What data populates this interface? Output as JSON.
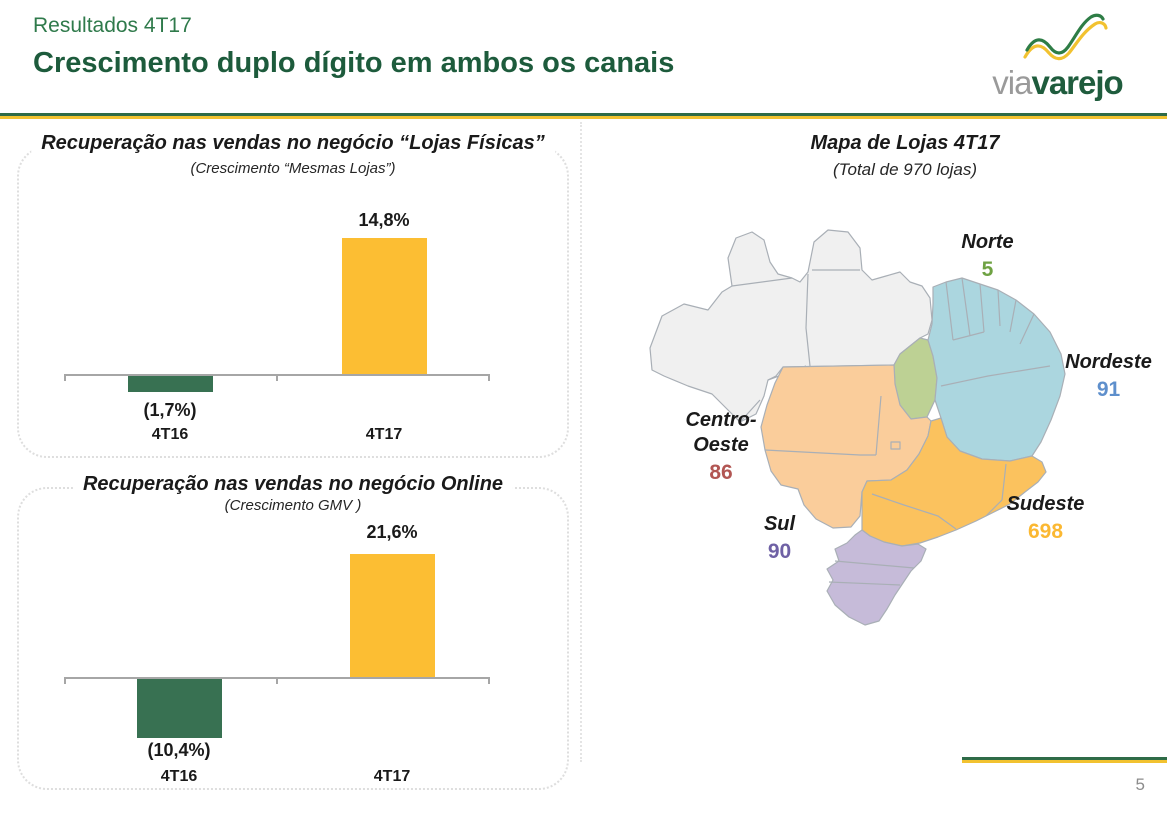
{
  "slide": {
    "kicker": "Resultados 4T17",
    "title": "Crescimento duplo dígito em ambos os canais",
    "page_number": "5"
  },
  "logo": {
    "via": "via",
    "varejo": "varejo"
  },
  "chart_data": [
    {
      "type": "bar",
      "title": "Recuperação nas vendas no negócio “Lojas Físicas”",
      "subtitle": "(Crescimento “Mesmas Lojas”)",
      "categories": [
        "4T16",
        "4T17"
      ],
      "values": [
        -1.7,
        14.8
      ],
      "value_labels": [
        "(1,7%)",
        "14,8%"
      ],
      "bar_colors": [
        "#387152",
        "#FCBE33"
      ],
      "unit": "%",
      "ylim": [
        -4,
        16
      ],
      "grid": false,
      "legend": "none"
    },
    {
      "type": "bar",
      "title": "Recuperação nas vendas no negócio Online",
      "subtitle": "(Crescimento GMV )",
      "categories": [
        "4T16",
        "4T17"
      ],
      "values": [
        -10.4,
        21.6
      ],
      "value_labels": [
        "(10,4%)",
        "21,6%"
      ],
      "bar_colors": [
        "#387152",
        "#FCBE33"
      ],
      "unit": "%",
      "ylim": [
        -14,
        24
      ],
      "grid": false,
      "legend": "none"
    }
  ],
  "map": {
    "title": "Mapa de Lojas 4T17",
    "subtitle": "(Total de 970 lojas)",
    "total_stores": 970,
    "regions": [
      {
        "name": "Norte",
        "stores": "5",
        "color": "#6FA243"
      },
      {
        "name": "Nordeste",
        "stores": "91",
        "color": "#5E8FCC"
      },
      {
        "name": "Centro-Oeste",
        "stores": "86",
        "color": "#B25653"
      },
      {
        "name": "Sudeste",
        "stores": "698",
        "color": "#FBB832"
      },
      {
        "name": "Sul",
        "stores": "90",
        "color": "#6F61A5"
      }
    ],
    "region_fill_colors": {
      "norte": "#F0F0F0",
      "tocantins": "#BDD194",
      "nordeste": "#ABD6DF",
      "centro_oeste": "#FACD9B",
      "sudeste": "#FBC25E",
      "sul": "#C6BBD9"
    },
    "border_color": "#A9AFB6"
  }
}
